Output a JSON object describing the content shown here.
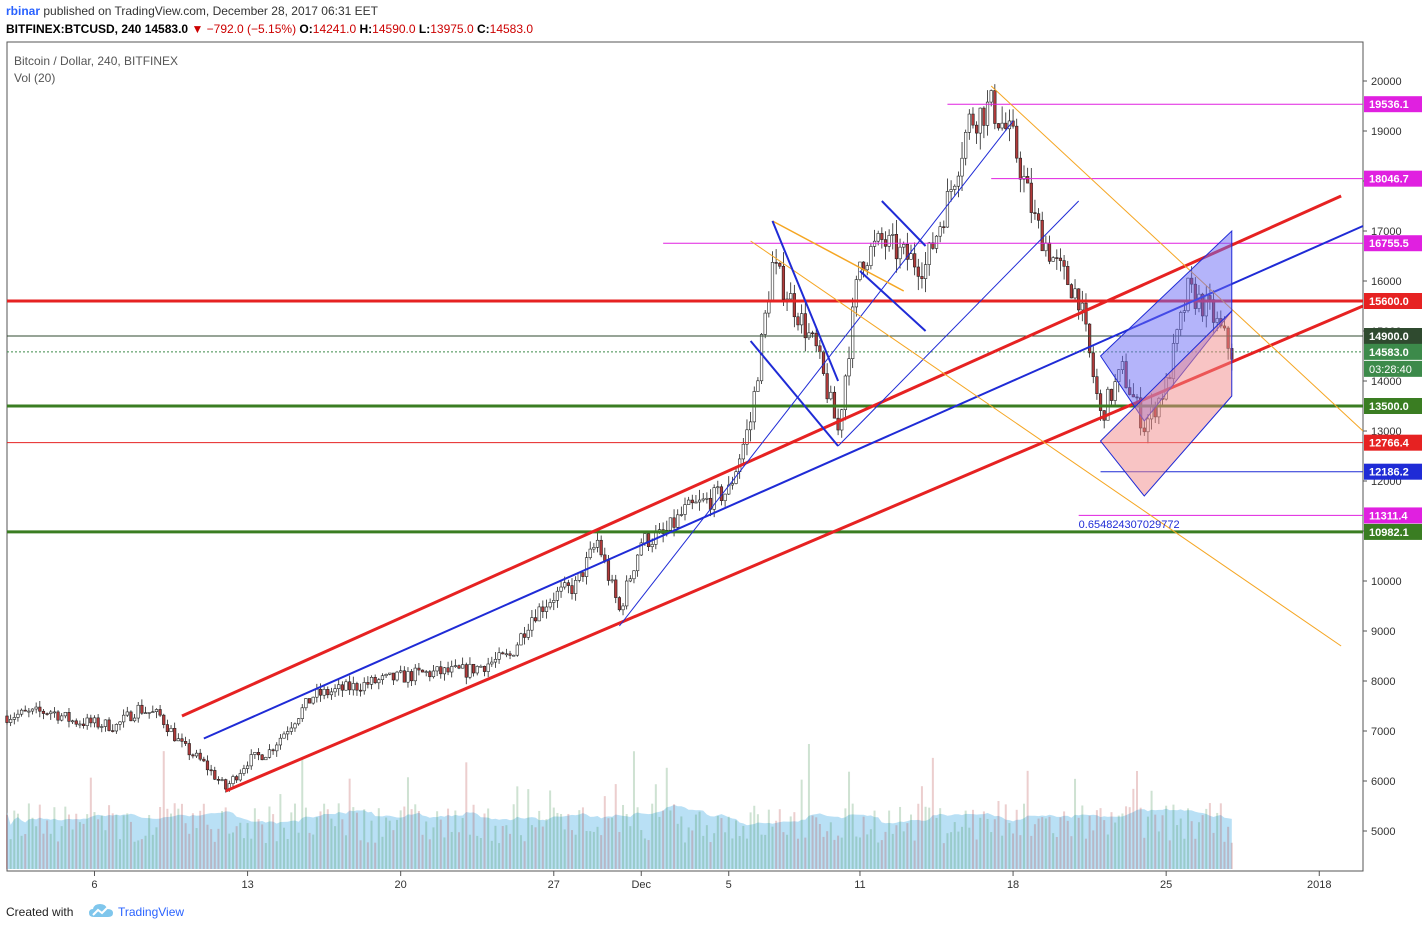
{
  "header": {
    "author": "rbinar",
    "published_text": "published on TradingView.com, December 28, 2017 06:31 EET",
    "symbol": "BITFINEX:BTCUSD, 240",
    "last": "14583.0",
    "change": "−792.0 (−5.15%)",
    "o_label": "O:",
    "o_value": "14241.0",
    "h_label": "H:",
    "h_value": "14590.0",
    "l_label": "L:",
    "l_value": "13975.0",
    "c_label": "C:",
    "c_value": "14583.0"
  },
  "legend": {
    "title": "Bitcoin / Dollar, 240, BITFINEX",
    "volume": "Vol (20)"
  },
  "footer": {
    "created_with": "Created with",
    "brand": "TradingView"
  },
  "colors": {
    "up": "#3c8a4a",
    "down": "#b23a3a",
    "red_line": "#e62222",
    "blue_line": "#1f2bd6",
    "orange_line": "#f5a623",
    "green_line": "#3a7d22",
    "magenta": "#e020e0",
    "volume": "#7fc6ec"
  },
  "chart_data": {
    "type": "candlestick",
    "y_axis": {
      "min": 4600,
      "max": 20400,
      "price_top": 20000,
      "price_bottom": 4600,
      "ticks": [
        5000,
        6000,
        7000,
        8000,
        9000,
        10000,
        11000,
        12000,
        13000,
        14000,
        15000,
        16000,
        17000,
        18000,
        19000,
        20000
      ]
    },
    "x_axis": {
      "start": "2017-11-02",
      "end": "2018-01-03",
      "ticks": [
        {
          "label": "6",
          "date": "2017-11-06"
        },
        {
          "label": "13",
          "date": "2017-11-13"
        },
        {
          "label": "20",
          "date": "2017-11-20"
        },
        {
          "label": "27",
          "date": "2017-11-27"
        },
        {
          "label": "Dec",
          "date": "2017-12-01"
        },
        {
          "label": "5",
          "date": "2017-12-05"
        },
        {
          "label": "11",
          "date": "2017-12-11"
        },
        {
          "label": "18",
          "date": "2017-12-18"
        },
        {
          "label": "25",
          "date": "2017-12-25"
        },
        {
          "label": "2018",
          "date": "2018-01-01"
        }
      ]
    },
    "price_path": [
      {
        "date": "2017-11-02",
        "price": 7300
      },
      {
        "date": "2017-11-04",
        "price": 7400
      },
      {
        "date": "2017-11-05",
        "price": 7200
      },
      {
        "date": "2017-11-07",
        "price": 7100
      },
      {
        "date": "2017-11-08",
        "price": 7450
      },
      {
        "date": "2017-11-09",
        "price": 7300
      },
      {
        "date": "2017-11-10",
        "price": 6700
      },
      {
        "date": "2017-11-11",
        "price": 6350
      },
      {
        "date": "2017-11-12",
        "price": 5850
      },
      {
        "date": "2017-11-13",
        "price": 6400
      },
      {
        "date": "2017-11-14",
        "price": 6600
      },
      {
        "date": "2017-11-16",
        "price": 7700
      },
      {
        "date": "2017-11-17",
        "price": 7800
      },
      {
        "date": "2017-11-19",
        "price": 8000
      },
      {
        "date": "2017-11-21",
        "price": 8150
      },
      {
        "date": "2017-11-23",
        "price": 8200
      },
      {
        "date": "2017-11-25",
        "price": 8500
      },
      {
        "date": "2017-11-26",
        "price": 9300
      },
      {
        "date": "2017-11-27",
        "price": 9700
      },
      {
        "date": "2017-11-28",
        "price": 9900
      },
      {
        "date": "2017-11-29",
        "price": 10800
      },
      {
        "date": "2017-11-30",
        "price": 9400
      },
      {
        "date": "2017-12-01",
        "price": 10800
      },
      {
        "date": "2017-12-02",
        "price": 10900
      },
      {
        "date": "2017-12-03",
        "price": 11400
      },
      {
        "date": "2017-12-04",
        "price": 11600
      },
      {
        "date": "2017-12-05",
        "price": 11800
      },
      {
        "date": "2017-12-06",
        "price": 13200
      },
      {
        "date": "2017-12-07",
        "price": 16300
      },
      {
        "date": "2017-12-08",
        "price": 15500
      },
      {
        "date": "2017-12-09",
        "price": 14600
      },
      {
        "date": "2017-12-10",
        "price": 13000
      },
      {
        "date": "2017-12-11",
        "price": 16400
      },
      {
        "date": "2017-12-12",
        "price": 16800
      },
      {
        "date": "2017-12-13",
        "price": 16500
      },
      {
        "date": "2017-12-14",
        "price": 16300
      },
      {
        "date": "2017-12-15",
        "price": 17600
      },
      {
        "date": "2017-12-16",
        "price": 19200
      },
      {
        "date": "2017-12-17",
        "price": 19500
      },
      {
        "date": "2017-12-18",
        "price": 18800
      },
      {
        "date": "2017-12-19",
        "price": 17200
      },
      {
        "date": "2017-12-20",
        "price": 16300
      },
      {
        "date": "2017-12-21",
        "price": 15700
      },
      {
        "date": "2017-12-22",
        "price": 13300
      },
      {
        "date": "2017-12-23",
        "price": 14200
      },
      {
        "date": "2017-12-24",
        "price": 13100
      },
      {
        "date": "2017-12-25",
        "price": 13900
      },
      {
        "date": "2017-12-26",
        "price": 15800
      },
      {
        "date": "2017-12-27",
        "price": 15400
      },
      {
        "date": "2017-12-28",
        "price": 14583
      }
    ],
    "volume_max": 8000,
    "volume_note": "volume histogram with Vol (20) moving-average area",
    "horizontal_lines": [
      {
        "price": 19536.1,
        "label": "19536.1",
        "color": "#e020e0",
        "from": "2017-12-15"
      },
      {
        "price": 18046.7,
        "label": "18046.7",
        "color": "#e020e0",
        "from": "2017-12-17"
      },
      {
        "price": 16755.5,
        "label": "16755.5",
        "color": "#e020e0",
        "from": "2017-12-02"
      },
      {
        "price": 15600.0,
        "label": "15600.0",
        "color": "#e62222",
        "from": "2017-11-02",
        "width": 3
      },
      {
        "price": 14900.0,
        "label": "14900.0",
        "color": "#2f4a2f",
        "from": "2017-11-02"
      },
      {
        "price": 14583.0,
        "label": "14583.0",
        "color": "#3c8a4a",
        "from": "2017-11-02",
        "dotted": true
      },
      {
        "price": 13500.0,
        "label": "13500.0",
        "color": "#3a7d22",
        "from": "2017-11-02",
        "width": 3
      },
      {
        "price": 12766.4,
        "label": "12766.4",
        "color": "#e62222",
        "from": "2017-11-02"
      },
      {
        "price": 12186.2,
        "label": "12186.2",
        "color": "#1f2bd6",
        "from": "2017-12-22"
      },
      {
        "price": 11311.4,
        "label": "11311.4",
        "color": "#e020e0",
        "from": "2017-12-21"
      },
      {
        "price": 10982.1,
        "label": "10982.1",
        "color": "#3a7d22",
        "from": "2017-11-02",
        "width": 3
      }
    ],
    "countdown_label": "03:28:40",
    "annotation": "0.654824307029772"
  }
}
